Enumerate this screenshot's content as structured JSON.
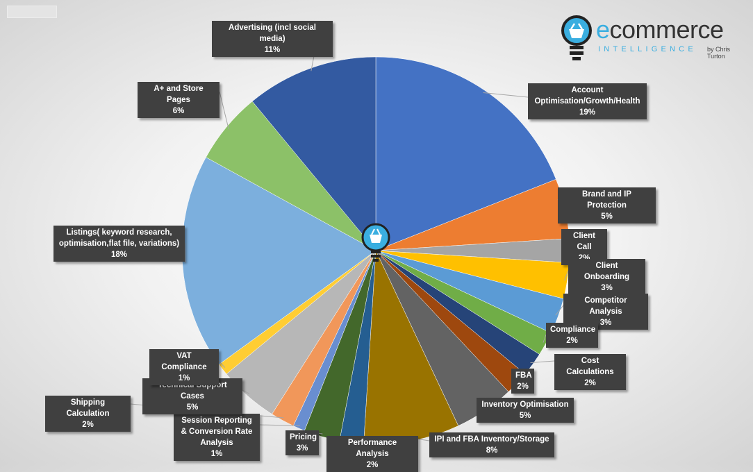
{
  "logo": {
    "word_first": "e",
    "word_rest": "commerce",
    "tagline": "INTELLIGENCE",
    "byline": "by Chris Turton"
  },
  "chart_data": {
    "type": "pie",
    "start": "top, clockwise",
    "slices": [
      {
        "label": "Account Optimisation/Growth/Health",
        "value": 19,
        "pct": "19%",
        "color": "#4472C4"
      },
      {
        "label": "Brand and IP Protection",
        "value": 5,
        "pct": "5%",
        "color": "#ED7D31"
      },
      {
        "label": "Client Call",
        "value": 2,
        "pct": "2%",
        "color": "#A5A5A5"
      },
      {
        "label": "Client Onboarding",
        "value": 3,
        "pct": "3%",
        "color": "#FFC000"
      },
      {
        "label": "Competitor Analysis",
        "value": 3,
        "pct": "3%",
        "color": "#5B9BD5"
      },
      {
        "label": "Compliance",
        "value": 2,
        "pct": "2%",
        "color": "#70AD47"
      },
      {
        "label": "Cost Calculations",
        "value": 2,
        "pct": "2%",
        "color": "#264478"
      },
      {
        "label": "FBA",
        "value": 2,
        "pct": "2%",
        "color": "#9E480E"
      },
      {
        "label": "Inventory Optimisation",
        "value": 5,
        "pct": "5%",
        "color": "#636363"
      },
      {
        "label": "IPI and FBA Inventory/Storage",
        "value": 8,
        "pct": "8%",
        "color": "#997300"
      },
      {
        "label": "Performance Analysis",
        "value": 2,
        "pct": "2%",
        "color": "#255E91"
      },
      {
        "label": "Pricing",
        "value": 3,
        "pct": "3%",
        "color": "#43682B"
      },
      {
        "label": "Session Reporting & Conversion Rate Analysis",
        "value": 1,
        "pct": "1%",
        "color": "#698ED0"
      },
      {
        "label": "Shipping Calculation",
        "value": 2,
        "pct": "2%",
        "color": "#F1975A"
      },
      {
        "label": "Technical Support Cases",
        "value": 5,
        "pct": "5%",
        "color": "#B7B7B7"
      },
      {
        "label": "VAT Compliance",
        "value": 1,
        "pct": "1%",
        "color": "#FFCD33"
      },
      {
        "label": "Listings( keyword research, optimisation,flat file, variations)",
        "value": 18,
        "pct": "18%",
        "color": "#7CAFDD"
      },
      {
        "label": "A+ and Store Pages",
        "value": 6,
        "pct": "6%",
        "color": "#8CC168"
      },
      {
        "label": "Advertising (incl social media)",
        "value": 11,
        "pct": "11%",
        "color": "#335AA1"
      }
    ]
  }
}
